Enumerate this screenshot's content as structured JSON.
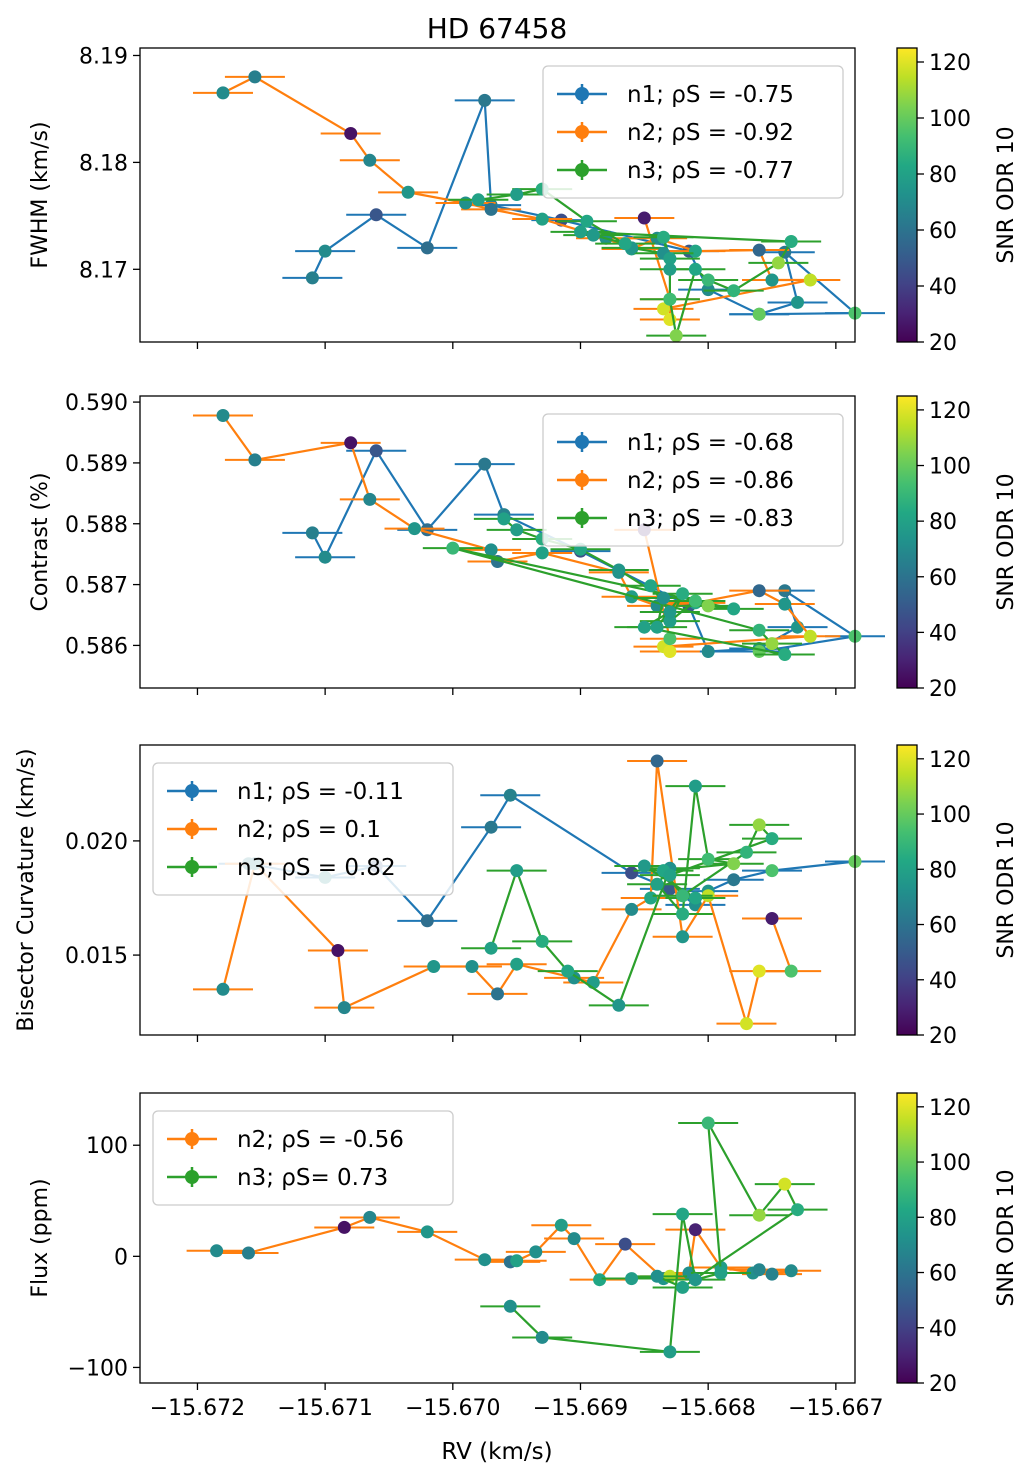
{
  "figure": {
    "title": "HD 67458",
    "xlabel": "RV (km/s)",
    "xlim": [
      -15.67245,
      -15.66685
    ],
    "xticks": [
      -15.672,
      -15.671,
      -15.67,
      -15.669,
      -15.668,
      -15.667
    ],
    "xtick_labels": [
      "−15.672",
      "−15.671",
      "−15.670",
      "−15.669",
      "−15.668",
      "−15.667"
    ],
    "colorbar": {
      "label": "SNR ODR 10",
      "range": [
        20,
        125
      ],
      "ticks": [
        "20",
        "40",
        "60",
        "80",
        "100",
        "120"
      ]
    },
    "colors": {
      "n1": "#1f77b4",
      "n2": "#ff7f0e",
      "n3": "#2ca02c"
    }
  },
  "chart_data": [
    {
      "type": "scatter",
      "panel": "fwhm",
      "ylabel": "FWHM (km/s)",
      "ylim": [
        8.1632,
        8.1907
      ],
      "yticks": [
        8.17,
        8.18,
        8.19
      ],
      "ytick_labels": [
        "8.17",
        "8.18",
        "8.19"
      ],
      "legend_loc": "upper right",
      "series": [
        {
          "name": "n1",
          "legend": "n1; ρS = -0.75",
          "errorbars": true,
          "x": [
            -15.6711,
            -15.671,
            -15.6706,
            -15.6702,
            -15.66975,
            -15.6697,
            -15.66915,
            -15.66815,
            -15.668,
            -15.6676,
            -15.6673,
            -15.6674,
            -15.66685,
            -15.6676
          ],
          "y": [
            8.1692,
            8.1717,
            8.1751,
            8.172,
            8.1858,
            8.176,
            8.1746,
            8.1717,
            8.1681,
            8.1658,
            8.1669,
            8.1716,
            8.1659,
            8.1658
          ],
          "snr": [
            65,
            70,
            48,
            58,
            62,
            66,
            45,
            50,
            70,
            72,
            75,
            62,
            95,
            100
          ]
        },
        {
          "name": "n2",
          "legend": "n2; ρS = -0.92",
          "errorbars": true,
          "x": [
            -15.6718,
            -15.67155,
            -15.6708,
            -15.67065,
            -15.67035,
            -15.6699,
            -15.6697,
            -15.6693,
            -15.6688,
            -15.6686,
            -15.6684,
            -15.6681,
            -15.6676,
            -15.6675,
            -15.6672,
            -15.66835,
            -15.6683,
            -15.6683,
            -15.6685
          ],
          "y": [
            8.1865,
            8.188,
            8.1827,
            8.1802,
            8.1772,
            8.1762,
            8.1756,
            8.1747,
            8.1729,
            8.1719,
            8.1729,
            8.1717,
            8.1718,
            8.169,
            8.169,
            8.1663,
            8.1653,
            8.1672,
            8.1748
          ],
          "snr": [
            70,
            65,
            25,
            68,
            75,
            72,
            60,
            80,
            72,
            78,
            70,
            82,
            55,
            75,
            115,
            118,
            120,
            95,
            28
          ]
        },
        {
          "name": "n3",
          "legend": "n3; ρS = -0.77",
          "errorbars": true,
          "x": [
            -15.6698,
            -15.6695,
            -15.6693,
            -15.66895,
            -15.6686,
            -15.66835,
            -15.6683,
            -15.66835,
            -15.6683,
            -15.6683,
            -15.66825,
            -15.6681,
            -15.668,
            -15.6678,
            -15.66745,
            -15.66735,
            -15.669,
            -15.6689,
            -15.66865
          ],
          "y": [
            8.1765,
            8.177,
            8.1775,
            8.1745,
            8.172,
            8.1715,
            8.171,
            8.173,
            8.17,
            8.1672,
            8.1638,
            8.17,
            8.169,
            8.168,
            8.1706,
            8.1726,
            8.1735,
            8.1732,
            8.1724
          ],
          "snr": [
            80,
            78,
            85,
            82,
            75,
            72,
            80,
            85,
            78,
            92,
            105,
            82,
            90,
            88,
            108,
            85,
            80,
            76,
            82
          ]
        }
      ]
    },
    {
      "type": "scatter",
      "panel": "contrast",
      "ylabel": "Contrast (%)",
      "ylim": [
        0.5853,
        0.5901
      ],
      "yticks": [
        0.586,
        0.587,
        0.588,
        0.589,
        0.59
      ],
      "ytick_labels": [
        "0.586",
        "0.587",
        "0.588",
        "0.589",
        "0.590"
      ],
      "legend_loc": "upper right",
      "series": [
        {
          "name": "n1",
          "legend": "n1; ρS = -0.68",
          "errorbars": true,
          "x": [
            -15.6711,
            -15.671,
            -15.6706,
            -15.6702,
            -15.66975,
            -15.6696,
            -15.669,
            -15.66815,
            -15.668,
            -15.6676,
            -15.6673,
            -15.6674,
            -15.66685,
            -15.6676
          ],
          "y": [
            0.58785,
            0.58745,
            0.5892,
            0.5879,
            0.58898,
            0.58815,
            0.58755,
            0.58665,
            0.5859,
            0.58595,
            0.5863,
            0.5869,
            0.58615,
            0.5859
          ],
          "snr": [
            65,
            70,
            48,
            58,
            62,
            66,
            45,
            50,
            70,
            72,
            75,
            62,
            95,
            100
          ]
        },
        {
          "name": "n2",
          "legend": "n2; ρS = -0.86",
          "errorbars": true,
          "x": [
            -15.6718,
            -15.67155,
            -15.6708,
            -15.67065,
            -15.6703,
            -15.6697,
            -15.66965,
            -15.6693,
            -15.6687,
            -15.6686,
            -15.6684,
            -15.6681,
            -15.6676,
            -15.6674,
            -15.6672,
            -15.66835,
            -15.6683,
            -15.6683,
            -15.6685
          ],
          "y": [
            0.58978,
            0.58905,
            0.58933,
            0.5884,
            0.58792,
            0.58757,
            0.58738,
            0.58752,
            0.5872,
            0.5868,
            0.58665,
            0.5867,
            0.5869,
            0.58668,
            0.58615,
            0.58598,
            0.5859,
            0.58611,
            0.5879
          ],
          "snr": [
            70,
            65,
            25,
            68,
            75,
            72,
            60,
            80,
            72,
            78,
            70,
            82,
            55,
            75,
            115,
            118,
            120,
            95,
            28
          ]
        },
        {
          "name": "n3",
          "legend": "n3; ρS = -0.83",
          "errorbars": true,
          "x": [
            -15.6696,
            -15.6695,
            -15.6693,
            -15.669,
            -15.6687,
            -15.66835,
            -15.6684,
            -15.6682,
            -15.6683,
            -15.6681,
            -15.668,
            -15.6678,
            -15.67,
            -15.6676,
            -15.6675,
            -15.6674,
            -15.6685,
            -15.6683,
            -15.66845
          ],
          "y": [
            0.58808,
            0.5879,
            0.58775,
            0.58758,
            0.58724,
            0.58678,
            0.5863,
            0.58685,
            0.5864,
            0.58673,
            0.58665,
            0.5866,
            0.5876,
            0.58625,
            0.58603,
            0.58585,
            0.5863,
            0.58655,
            0.58698
          ],
          "snr": [
            80,
            78,
            85,
            82,
            75,
            72,
            80,
            85,
            78,
            92,
            105,
            82,
            90,
            88,
            108,
            85,
            80,
            76,
            82
          ]
        }
      ]
    },
    {
      "type": "scatter",
      "panel": "bisector",
      "ylabel": "Bisector Curvature (km/s)",
      "ylim": [
        0.0115,
        0.0242
      ],
      "yticks": [
        0.015,
        0.02
      ],
      "ytick_labels": [
        "0.015",
        "0.020"
      ],
      "legend_loc": "upper left",
      "series": [
        {
          "name": "n1",
          "legend": "n1; ρS = -0.11",
          "errorbars": true,
          "x": [
            -15.6716,
            -15.671,
            -15.6706,
            -15.6702,
            -15.6697,
            -15.66955,
            -15.6686,
            -15.6683,
            -15.6682,
            -15.6681,
            -15.668,
            -15.6678,
            -15.6675,
            -15.66685
          ],
          "y": [
            0.019,
            0.0184,
            0.0189,
            0.0165,
            0.0206,
            0.022,
            0.0186,
            0.0179,
            0.0176,
            0.0172,
            0.0178,
            0.0183,
            0.0187,
            0.0191
          ],
          "snr": [
            65,
            70,
            48,
            58,
            62,
            66,
            45,
            50,
            70,
            72,
            75,
            62,
            95,
            100
          ]
        },
        {
          "name": "n2",
          "legend": "n2; ρS = 0.1",
          "errorbars": true,
          "x": [
            -15.6718,
            -15.67155,
            -15.6709,
            -15.67085,
            -15.67015,
            -15.66985,
            -15.66965,
            -15.6695,
            -15.66905,
            -15.6689,
            -15.6686,
            -15.66845,
            -15.6684,
            -15.6682,
            -15.668,
            -15.6677,
            -15.6676,
            -15.66735,
            -15.6675
          ],
          "y": [
            0.0135,
            0.019,
            0.0152,
            0.0127,
            0.0145,
            0.0145,
            0.0133,
            0.0146,
            0.014,
            0.0138,
            0.017,
            0.0175,
            0.0235,
            0.0158,
            0.0176,
            0.012,
            0.0143,
            0.0143,
            0.0166
          ],
          "snr": [
            70,
            65,
            25,
            68,
            75,
            72,
            60,
            80,
            72,
            78,
            70,
            82,
            55,
            75,
            115,
            118,
            120,
            95,
            28
          ]
        },
        {
          "name": "n3",
          "legend": "n3; ρS = 0.82",
          "errorbars": true,
          "x": [
            -15.6697,
            -15.6695,
            -15.6693,
            -15.6691,
            -15.6687,
            -15.6683,
            -15.6684,
            -15.6682,
            -15.6681,
            -15.668,
            -15.6678,
            -15.66835,
            -15.6682,
            -15.6677,
            -15.6676,
            -15.6675,
            -15.6683,
            -15.6685,
            -15.6681
          ],
          "y": [
            0.0153,
            0.0187,
            0.0156,
            0.0143,
            0.0128,
            0.0188,
            0.0181,
            0.0168,
            0.0224,
            0.0192,
            0.019,
            0.0187,
            0.0176,
            0.0195,
            0.0207,
            0.0201,
            0.0185,
            0.0189,
            0.0175
          ],
          "snr": [
            80,
            78,
            85,
            82,
            75,
            72,
            80,
            85,
            78,
            92,
            105,
            82,
            90,
            88,
            108,
            85,
            80,
            76,
            82
          ]
        }
      ]
    },
    {
      "type": "scatter",
      "panel": "flux",
      "ylabel": "Flux (ppm)",
      "ylim": [
        -114,
        147
      ],
      "yticks": [
        -100,
        0,
        100
      ],
      "ytick_labels": [
        "−100",
        "0",
        "100"
      ],
      "legend_loc": "upper left",
      "series": [
        {
          "name": "n2",
          "legend": "n2; ρS = -0.56",
          "errorbars": true,
          "x": [
            -15.67185,
            -15.6716,
            -15.67085,
            -15.67065,
            -15.6702,
            -15.66975,
            -15.66955,
            -15.6695,
            -15.66935,
            -15.66915,
            -15.66905,
            -15.66885,
            -15.66865,
            -15.66835,
            -15.6683,
            -15.66815,
            -15.6681,
            -15.6679,
            -15.66765,
            -15.6676,
            -15.6675,
            -15.66735
          ],
          "y": [
            5,
            3,
            26,
            35,
            22,
            -3,
            -5,
            -4,
            4,
            28,
            16,
            -21,
            11,
            -20,
            -18,
            -15,
            24,
            -10,
            -15,
            -12,
            -16,
            -13
          ],
          "snr": [
            70,
            65,
            25,
            68,
            75,
            72,
            60,
            80,
            72,
            78,
            70,
            82,
            45,
            75,
            115,
            72,
            30,
            78,
            72,
            68,
            66,
            70
          ]
        },
        {
          "name": "n3",
          "legend": "n3; ρS= 0.73",
          "errorbars": true,
          "x": [
            -15.66955,
            -15.6693,
            -15.6683,
            -15.6682,
            -15.6681,
            -15.6679,
            -15.668,
            -15.6676,
            -15.6674,
            -15.6673,
            -15.6682,
            -15.6684,
            -15.6686
          ],
          "y": [
            -45,
            -73,
            -86,
            38,
            -21,
            -15,
            120,
            37,
            65,
            42,
            -28,
            -18,
            -20
          ],
          "snr": [
            72,
            70,
            78,
            82,
            75,
            80,
            90,
            108,
            118,
            85,
            80,
            72,
            78
          ]
        }
      ]
    }
  ]
}
